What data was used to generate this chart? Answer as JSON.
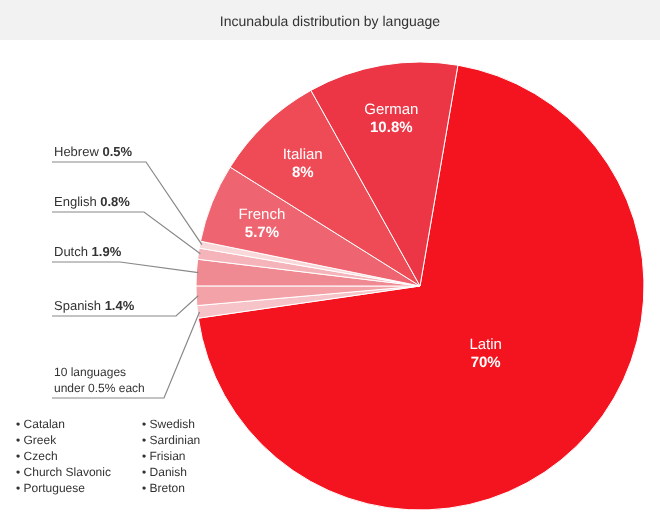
{
  "chart_data": {
    "type": "pie",
    "title": "Incunabula distribution by language",
    "categories": [
      "Latin",
      "10 languages under 0.5% each",
      "Spanish",
      "Dutch",
      "English",
      "Hebrew",
      "French",
      "Italian",
      "German"
    ],
    "values": [
      70,
      0.9,
      1.4,
      1.9,
      0.8,
      0.5,
      5.7,
      8,
      10.8
    ],
    "value_labels": [
      "70%",
      null,
      "1.4%",
      "1.9%",
      "0.8%",
      "0.5%",
      "5.7%",
      "8%",
      "10.8%"
    ],
    "colors": [
      "#f41420",
      "#f6c4c8",
      "#f3a2a8",
      "#f08a92",
      "#f4b4b9",
      "#f9d8da",
      "#ee6470",
      "#ef4b57",
      "#ec3646"
    ],
    "annotations": [
      "• Catalan",
      "• Greek",
      "• Czech",
      "• Church Slavonic",
      "• Portuguese",
      "• Swedish",
      "• Sardinian",
      "• Frisian",
      "• Danish",
      "• Breton"
    ]
  }
}
